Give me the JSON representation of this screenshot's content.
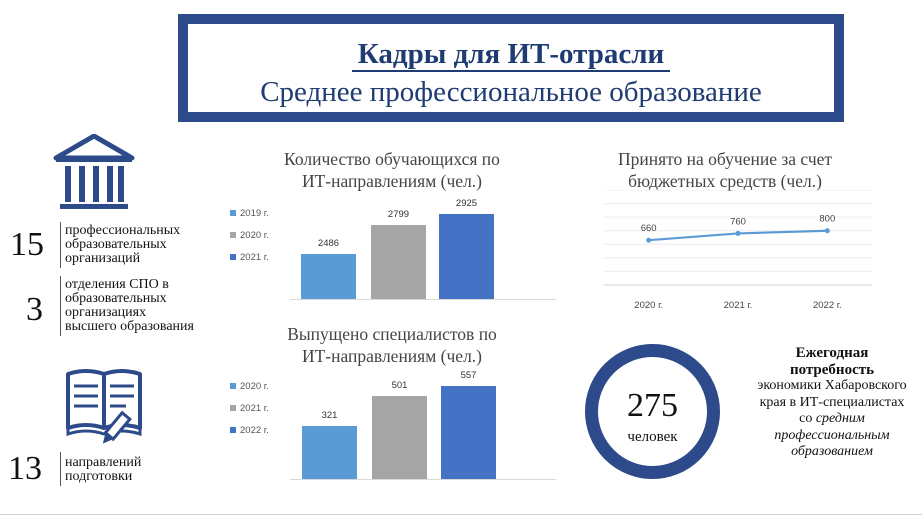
{
  "header": {
    "title": "Кадры для ИТ-отрасли",
    "subtitle": "Среднее профессиональное образование"
  },
  "stats": [
    {
      "number": "15",
      "text_lines": [
        "профессиональных",
        "образовательных",
        "организаций"
      ],
      "icon": "building-icon"
    },
    {
      "number": "3",
      "text_lines": [
        "отделения СПО в",
        "образовательных",
        "организациях",
        "высшего образования"
      ]
    },
    {
      "number": "13",
      "text_lines": [
        "направлений",
        "подготовки"
      ],
      "icon": "book-pencil-icon"
    }
  ],
  "chart_data": [
    {
      "type": "bar",
      "title_lines": [
        "Количество обучающихся по",
        "ИТ-направлениям (чел.)"
      ],
      "categories": [
        "2019 г.",
        "2020 г.",
        "2021 г."
      ],
      "values": [
        2486,
        2799,
        2925
      ],
      "colors": [
        "#5b9bd5",
        "#a5a5a5",
        "#4472c4"
      ],
      "ylim": [
        2000,
        3000
      ]
    },
    {
      "type": "bar",
      "title_lines": [
        "Выпущено специалистов по",
        "ИТ-направлениям (чел.)"
      ],
      "categories": [
        "2020 г.",
        "2021 г.",
        "2022 г."
      ],
      "values": [
        321,
        501,
        557
      ],
      "colors": [
        "#5b9bd5",
        "#a5a5a5",
        "#4472c4"
      ],
      "ylim": [
        0,
        600
      ]
    },
    {
      "type": "line",
      "title_lines": [
        "Принято на обучение за счет",
        "бюджетных средств (чел.)"
      ],
      "x": [
        "2020 г.",
        "2021 г.",
        "2022 г."
      ],
      "values": [
        660,
        760,
        800
      ],
      "color": "#5b9bd5",
      "ylim": [
        0,
        1400
      ],
      "grid": true
    }
  ],
  "need": {
    "number": "275",
    "unit": "человек",
    "bold_lines": [
      "Ежегодная",
      "потребность"
    ],
    "normal_lines": [
      "экономики Хабаровского",
      "края в ИТ-специалистах",
      "со"
    ],
    "italic_inline": "средним",
    "italic_lines": [
      "профессиональным",
      "образованием"
    ],
    "ring_color": "#2d4a8a"
  }
}
